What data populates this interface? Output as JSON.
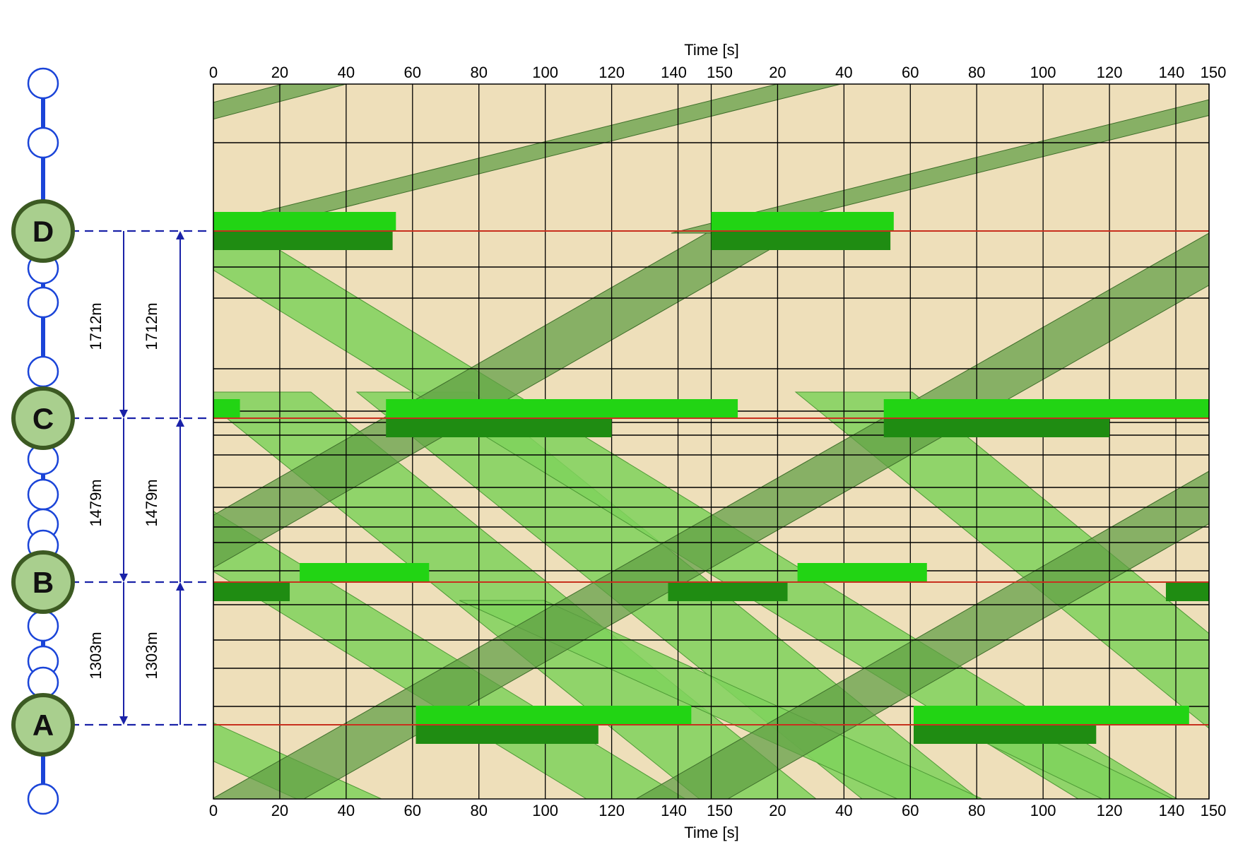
{
  "chart_data": {
    "type": "time-space diagram",
    "x_axis_title_top": "Time [s]",
    "x_axis_title_bottom": "Time [s]",
    "x_ticks": [
      "0",
      "20",
      "40",
      "60",
      "80",
      "100",
      "120",
      "140",
      "150",
      "20",
      "40",
      "60",
      "80",
      "100",
      "120",
      "140",
      "150"
    ],
    "x_tick_values": [
      0,
      20,
      40,
      60,
      80,
      100,
      120,
      140,
      150,
      170,
      190,
      210,
      230,
      250,
      270,
      290,
      300
    ],
    "xlim": [
      0,
      300
    ],
    "cycle_length_s": 150,
    "intersections": [
      {
        "label": "D",
        "fill": "#a9cf8e"
      },
      {
        "label": "C",
        "fill": "#a9cf8e"
      },
      {
        "label": "B",
        "fill": "#a9cf8e"
      },
      {
        "label": "A",
        "fill": "#a9cf8e"
      }
    ],
    "spacing_labels_left": [
      "1712m",
      "1479m",
      "1303m"
    ],
    "spacing_labels_right": [
      "1712m",
      "1479m",
      "1303m"
    ],
    "green_splits": [
      {
        "node": "D",
        "phase": "upper",
        "intervals": [
          [
            0,
            55
          ],
          [
            150,
            205
          ]
        ]
      },
      {
        "node": "D",
        "phase": "lower",
        "intervals": [
          [
            0,
            54
          ],
          [
            150,
            204
          ]
        ]
      },
      {
        "node": "C",
        "phase": "upper",
        "intervals": [
          [
            0,
            8
          ],
          [
            52,
            158
          ],
          [
            202,
            300
          ]
        ]
      },
      {
        "node": "C",
        "phase": "lower",
        "intervals": [
          [
            52,
            120
          ],
          [
            202,
            270
          ]
        ]
      },
      {
        "node": "B",
        "phase": "upper",
        "intervals": [
          [
            26,
            65
          ],
          [
            176,
            215
          ]
        ]
      },
      {
        "node": "B",
        "phase": "lower",
        "intervals": [
          [
            0,
            23
          ],
          [
            137,
            173
          ],
          [
            287,
            300
          ]
        ]
      },
      {
        "node": "A",
        "phase": "upper",
        "intervals": [
          [
            61,
            144
          ],
          [
            211,
            294
          ]
        ]
      },
      {
        "node": "A",
        "phase": "lower",
        "intervals": [
          [
            61,
            116
          ],
          [
            211,
            266
          ]
        ]
      }
    ],
    "colors": {
      "background": "#eedfba",
      "band_light": "#7fd25c",
      "band_dark": "#5f9e44",
      "split_bright": "#22d414",
      "split_dark": "#1f8c12",
      "stopline": "#c8301e",
      "arrow": "#1a22a8",
      "corridor": "#1a44d8"
    }
  }
}
